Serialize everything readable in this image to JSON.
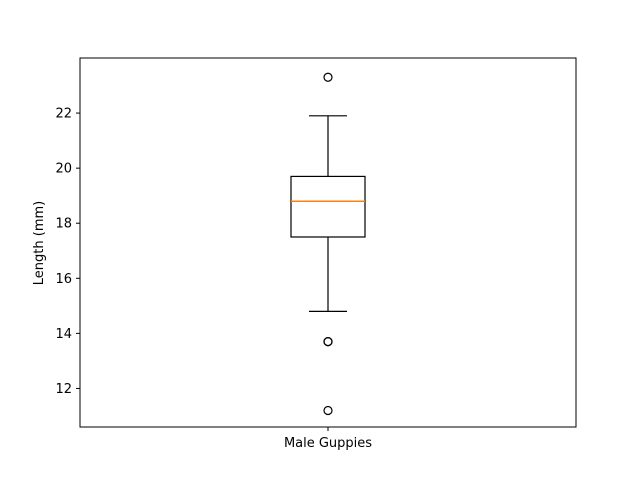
{
  "chart_data": {
    "type": "box",
    "categories": [
      "Male Guppies"
    ],
    "ylabel": "Length (mm)",
    "ylim": [
      10.6,
      24.0
    ],
    "yticks": [
      12,
      14,
      16,
      18,
      20,
      22
    ],
    "ytick_labels": [
      "12",
      "14",
      "16",
      "18",
      "20",
      "22"
    ],
    "boxes": [
      {
        "category": "Male Guppies",
        "whisker_low": 14.8,
        "q1": 17.5,
        "median": 18.8,
        "q3": 19.7,
        "whisker_high": 21.9,
        "outliers": [
          23.3,
          13.7,
          13.7,
          11.2
        ]
      }
    ],
    "colors": {
      "box": "#000000",
      "median": "#ff7f0e",
      "frame": "#000000"
    },
    "grid": false
  }
}
